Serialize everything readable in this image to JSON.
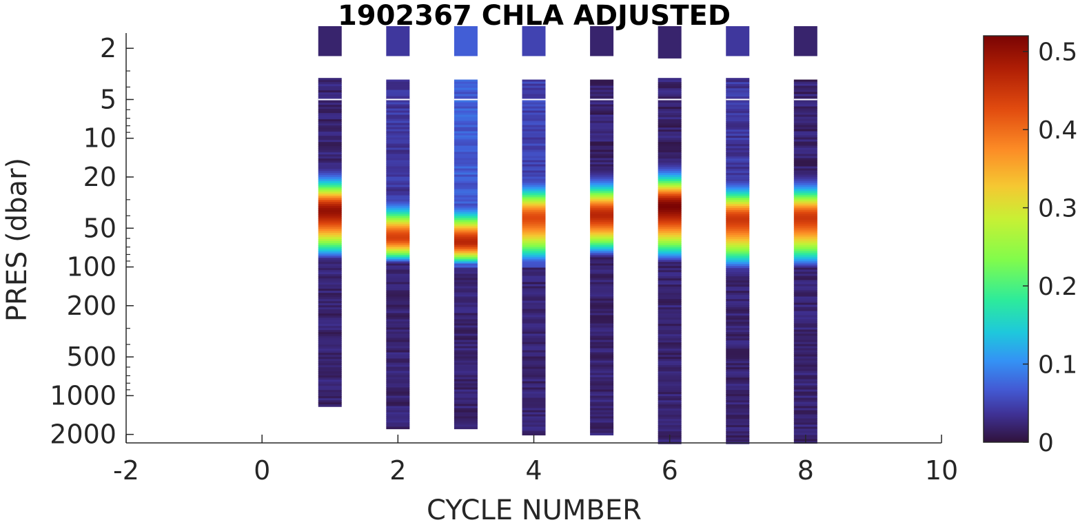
{
  "chart_data": {
    "type": "heatmap",
    "title": "1902367  CHLA ADJUSTED",
    "xlabel": "CYCLE NUMBER",
    "ylabel": "PRES (dbar)",
    "xlim": [
      -2,
      10
    ],
    "x_ticks": [
      "-2",
      "0",
      "2",
      "4",
      "6",
      "8",
      "10"
    ],
    "y_scale": "log",
    "y_reversed": true,
    "y_ticks": [
      "2",
      "5",
      "10",
      "20",
      "50",
      "100",
      "200",
      "500",
      "1000",
      "2000"
    ],
    "colorbar": {
      "colormap": "turbo",
      "range": [
        0,
        0.52
      ],
      "tick_labels": [
        "0",
        "0.1",
        "0.2",
        "0.3",
        "0.4",
        "0.5"
      ]
    },
    "profiles": [
      {
        "cycle": 1,
        "pres_range": [
          1.6,
          1200
        ],
        "gap_below_surface": [
          2.3,
          3.4
        ],
        "deep_start": 90,
        "peak_pres": 37,
        "peak_value": 0.5,
        "top_value": 0.02
      },
      {
        "cycle": 2,
        "pres_range": [
          1.6,
          1750
        ],
        "gap_below_surface": [
          2.3,
          3.5
        ],
        "deep_start": 95,
        "peak_pres": 60,
        "peak_value": 0.44,
        "top_value": 0.04
      },
      {
        "cycle": 3,
        "pres_range": [
          1.6,
          1750
        ],
        "gap_below_surface": [
          2.3,
          3.5
        ],
        "deep_start": 100,
        "peak_pres": 65,
        "peak_value": 0.47,
        "top_value": 0.07
      },
      {
        "cycle": 4,
        "pres_range": [
          1.6,
          2000
        ],
        "gap_below_surface": [
          2.3,
          3.5
        ],
        "deep_start": 100,
        "peak_pres": 42,
        "peak_value": 0.43,
        "top_value": 0.05
      },
      {
        "cycle": 5,
        "pres_range": [
          1.6,
          2000
        ],
        "gap_below_surface": [
          2.3,
          3.5
        ],
        "deep_start": 85,
        "peak_pres": 40,
        "peak_value": 0.47,
        "top_value": 0.02
      },
      {
        "cycle": 6,
        "pres_range": [
          1.6,
          2300
        ],
        "gap_below_surface": [
          2.4,
          3.4
        ],
        "deep_start": 95,
        "peak_pres": 34,
        "peak_value": 0.52,
        "top_value": 0.02
      },
      {
        "cycle": 7,
        "pres_range": [
          1.6,
          2300
        ],
        "gap_below_surface": [
          2.3,
          3.4
        ],
        "deep_start": 110,
        "peak_pres": 43,
        "peak_value": 0.45,
        "top_value": 0.04
      },
      {
        "cycle": 8,
        "pres_range": [
          1.6,
          2300
        ],
        "gap_below_surface": [
          2.3,
          3.5
        ],
        "deep_start": 105,
        "peak_pres": 42,
        "peak_value": 0.45,
        "top_value": 0.02
      }
    ]
  }
}
